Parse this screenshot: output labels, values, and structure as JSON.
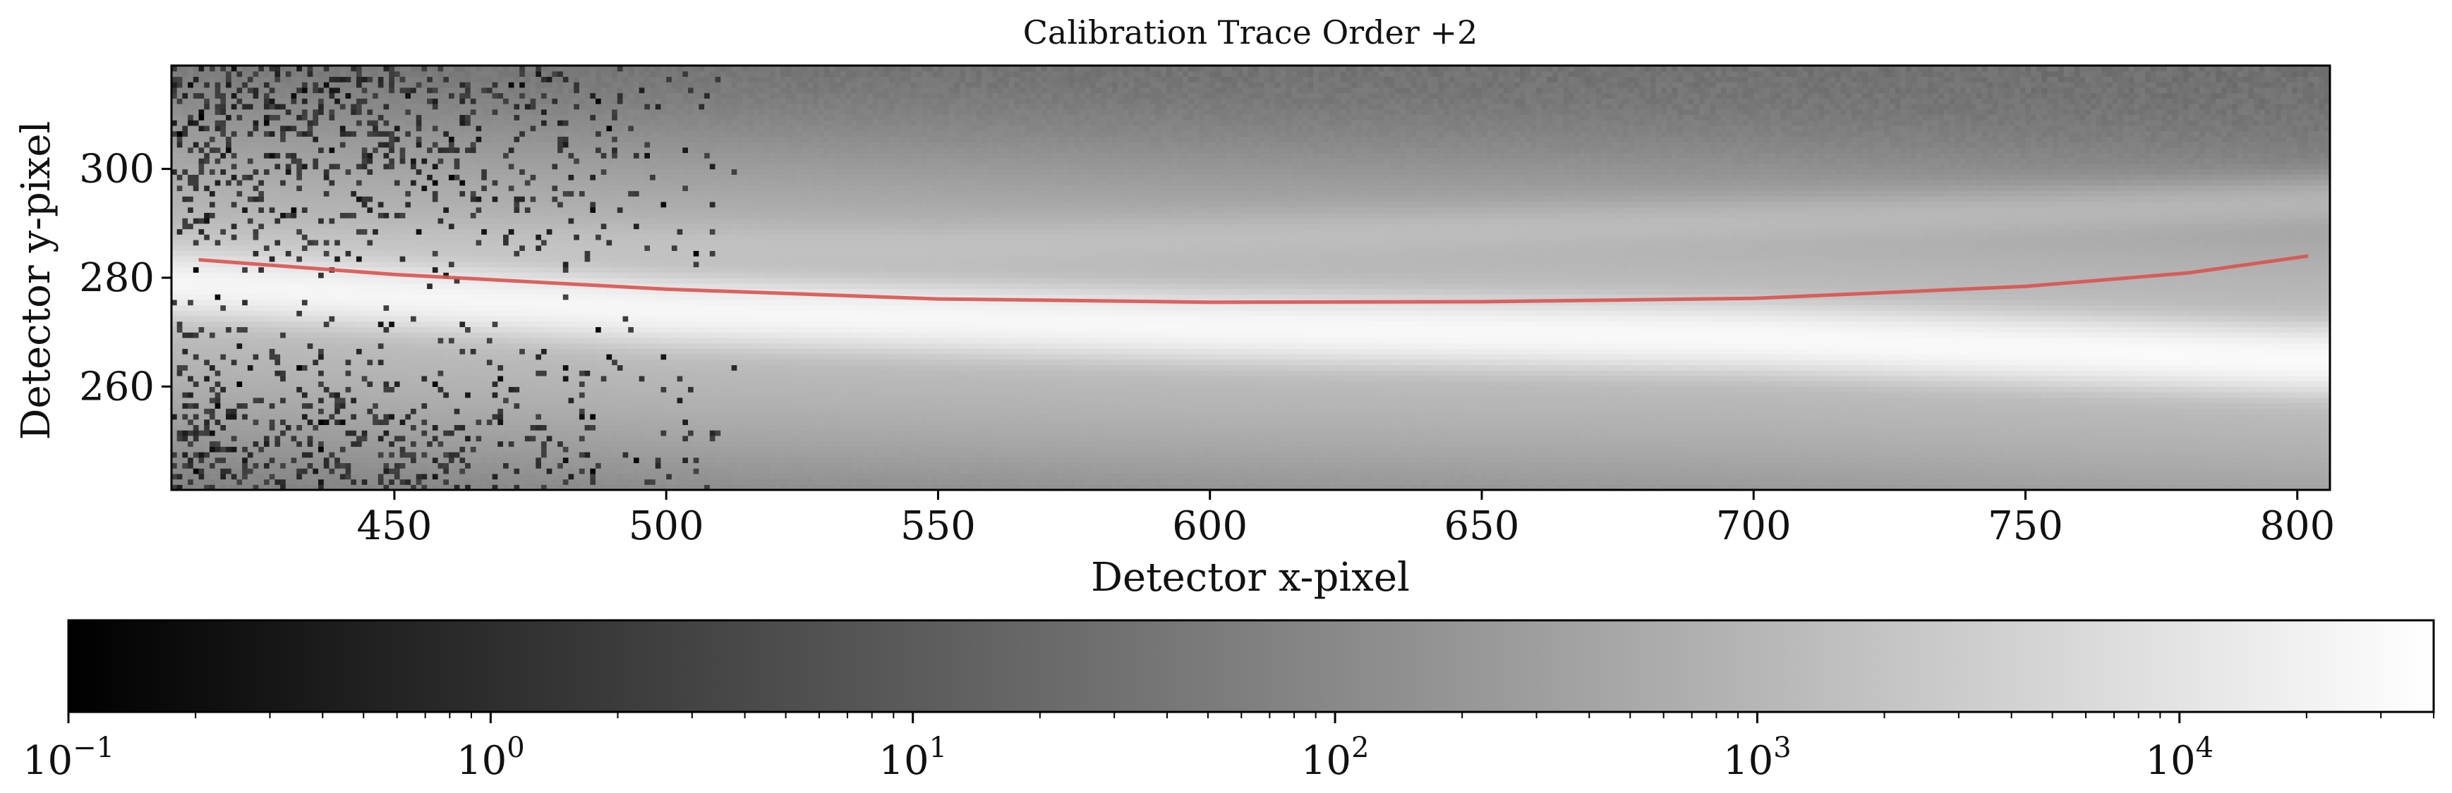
{
  "chart_data": {
    "type": "heatmap",
    "title": "Calibration Trace Order +2",
    "xlabel": "Detector x-pixel",
    "ylabel": "Detector y-pixel",
    "xlim": [
      409,
      806
    ],
    "ylim": [
      241,
      319
    ],
    "xticks": [
      450,
      500,
      550,
      600,
      650,
      700,
      750,
      800
    ],
    "yticks": [
      260,
      280,
      300
    ],
    "colormap": "gray",
    "color_scale": "log",
    "colorbar": {
      "orientation": "horizontal",
      "range": [
        0.1,
        40000
      ],
      "tick_labels": [
        {
          "base": "10",
          "exp": "−1",
          "value": 0.1
        },
        {
          "base": "10",
          "exp": "0",
          "value": 1
        },
        {
          "base": "10",
          "exp": "1",
          "value": 10
        },
        {
          "base": "10",
          "exp": "2",
          "value": 100
        },
        {
          "base": "10",
          "exp": "3",
          "value": 1000
        },
        {
          "base": "10",
          "exp": "4",
          "value": 10000
        }
      ]
    },
    "image_features": {
      "bright_band_y_at_x": [
        [
          409,
          279
        ],
        [
          500,
          274
        ],
        [
          600,
          271
        ],
        [
          700,
          269
        ],
        [
          800,
          265
        ],
        [
          806,
          265
        ]
      ],
      "faint_band_y_at_x": [
        [
          409,
          286
        ],
        [
          550,
          286
        ],
        [
          650,
          289
        ],
        [
          750,
          292
        ],
        [
          806,
          294
        ]
      ],
      "band_peak_value": 30000,
      "background_value": 30,
      "noisy_pixels_region": "left edge, top and bottom"
    },
    "trace": {
      "name": "",
      "color": "#d9534f",
      "x": [
        414,
        450,
        500,
        550,
        600,
        650,
        700,
        750,
        780,
        802
      ],
      "y": [
        283.3,
        280.6,
        277.9,
        276.1,
        275.5,
        275.6,
        276.2,
        278.4,
        280.9,
        284.0
      ]
    }
  }
}
